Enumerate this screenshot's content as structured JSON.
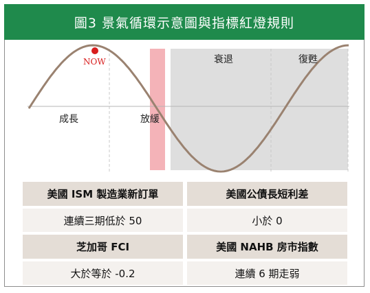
{
  "title": "圖3  景氣循環示意圖與指標紅燈規則",
  "phases": {
    "expansion": "成長",
    "slowdown": "放緩",
    "recession": "衰退",
    "recovery": "復甦"
  },
  "marker_label": "NOW",
  "colors": {
    "header": "#1f8a4c",
    "curve": "#9a8270",
    "marker": "#d81d1d",
    "slowdown_band": "#f4b3b8",
    "recession_band": "#dedede",
    "table_header": "#e4ddd6",
    "table_value": "#f4f1ee"
  },
  "indicators": [
    {
      "name": "美國 ISM 製造業新訂單",
      "rule": "連續三期低於 50"
    },
    {
      "name": "美國公債長短利差",
      "rule": "小於 0"
    },
    {
      "name": "芝加哥 FCI",
      "rule": "大於等於 -0.2"
    },
    {
      "name": "美國 NAHB 房市指數",
      "rule": "連續 6 期走弱"
    }
  ]
}
